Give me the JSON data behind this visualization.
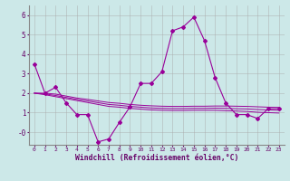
{
  "xlabel": "Windchill (Refroidissement éolien,°C)",
  "background_color": "#cce8e8",
  "grid_color": "#aaaaaa",
  "line_color": "#990099",
  "xlim": [
    -0.5,
    23.5
  ],
  "ylim": [
    -0.65,
    6.5
  ],
  "yticks": [
    0,
    1,
    2,
    3,
    4,
    5,
    6
  ],
  "ytick_labels": [
    "-0",
    "1",
    "2",
    "3",
    "4",
    "5",
    "6"
  ],
  "xticks": [
    0,
    1,
    2,
    3,
    4,
    5,
    6,
    7,
    8,
    9,
    10,
    11,
    12,
    13,
    14,
    15,
    16,
    17,
    18,
    19,
    20,
    21,
    22,
    23
  ],
  "main_series": [
    3.5,
    2.0,
    2.3,
    1.5,
    0.9,
    0.9,
    -0.5,
    -0.35,
    0.5,
    1.3,
    2.5,
    2.5,
    3.1,
    5.2,
    5.4,
    5.9,
    4.7,
    2.8,
    1.5,
    0.9,
    0.9,
    0.7,
    1.2,
    1.2
  ],
  "line1": [
    2.0,
    2.0,
    1.95,
    1.85,
    1.75,
    1.68,
    1.6,
    1.52,
    1.48,
    1.42,
    1.38,
    1.35,
    1.33,
    1.32,
    1.32,
    1.33,
    1.33,
    1.34,
    1.34,
    1.33,
    1.32,
    1.3,
    1.28,
    1.27
  ],
  "line2": [
    2.0,
    1.92,
    1.82,
    1.72,
    1.62,
    1.52,
    1.42,
    1.32,
    1.28,
    1.22,
    1.18,
    1.14,
    1.12,
    1.11,
    1.11,
    1.12,
    1.12,
    1.12,
    1.1,
    1.08,
    1.06,
    1.02,
    1.0,
    0.98
  ],
  "line3": [
    2.0,
    1.96,
    1.88,
    1.78,
    1.68,
    1.6,
    1.51,
    1.42,
    1.38,
    1.32,
    1.28,
    1.24,
    1.22,
    1.21,
    1.21,
    1.22,
    1.22,
    1.23,
    1.22,
    1.2,
    1.19,
    1.16,
    1.14,
    1.12
  ]
}
